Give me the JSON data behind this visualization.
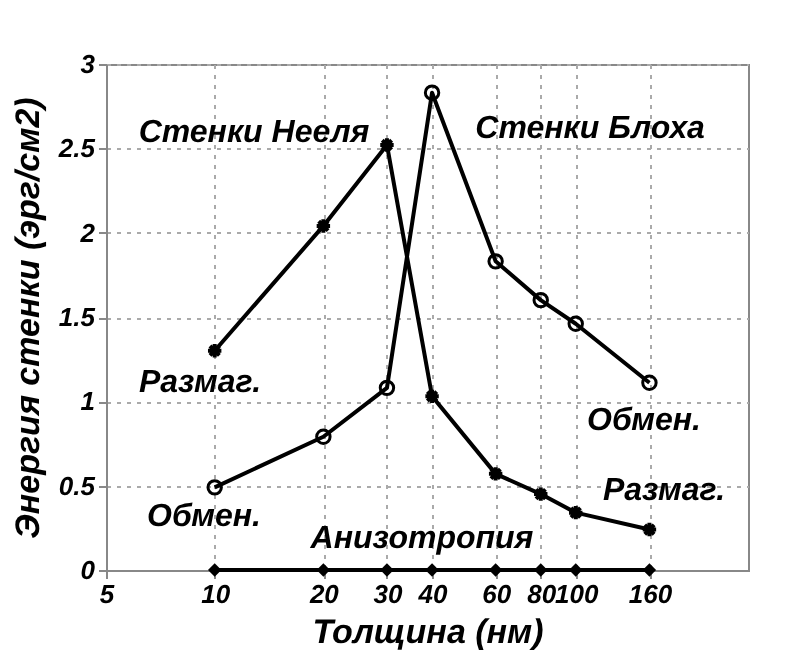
{
  "chart_data": {
    "type": "line",
    "xlabel": "Толщина (нм)",
    "ylabel": "Энергия стенки (эрг/см2)",
    "x": [
      10,
      20,
      30,
      40,
      60,
      80,
      100,
      160
    ],
    "series": [
      {
        "color": "#000000",
        "marker": "cross",
        "values": [
          1.3,
          2.04,
          2.52,
          1.03,
          0.57,
          0.45,
          0.34,
          0.24
        ]
      },
      {
        "color": "#000000",
        "marker": "circle",
        "values": [
          0.49,
          0.79,
          1.08,
          2.83,
          1.83,
          1.6,
          1.46,
          1.11
        ]
      },
      {
        "color": "#000000",
        "marker": "diamond",
        "values": [
          0,
          0,
          0,
          0,
          0,
          0,
          0,
          0
        ]
      }
    ],
    "log": "x",
    "xlim": [
      5,
      300
    ],
    "xticks": [
      5,
      10,
      20,
      30,
      40,
      60,
      80,
      100,
      160
    ],
    "ylim": [
      0,
      3
    ],
    "yticks": [
      0,
      0.5,
      1,
      1.5,
      2,
      2.5,
      3
    ],
    "grid": true,
    "line_style": "solid",
    "annotations": [
      "Стенки Нееля",
      "Стенки Блоха",
      "Размаг.",
      "Обмен.",
      "Анизотропия",
      "Обмен.",
      "Размаг."
    ]
  }
}
